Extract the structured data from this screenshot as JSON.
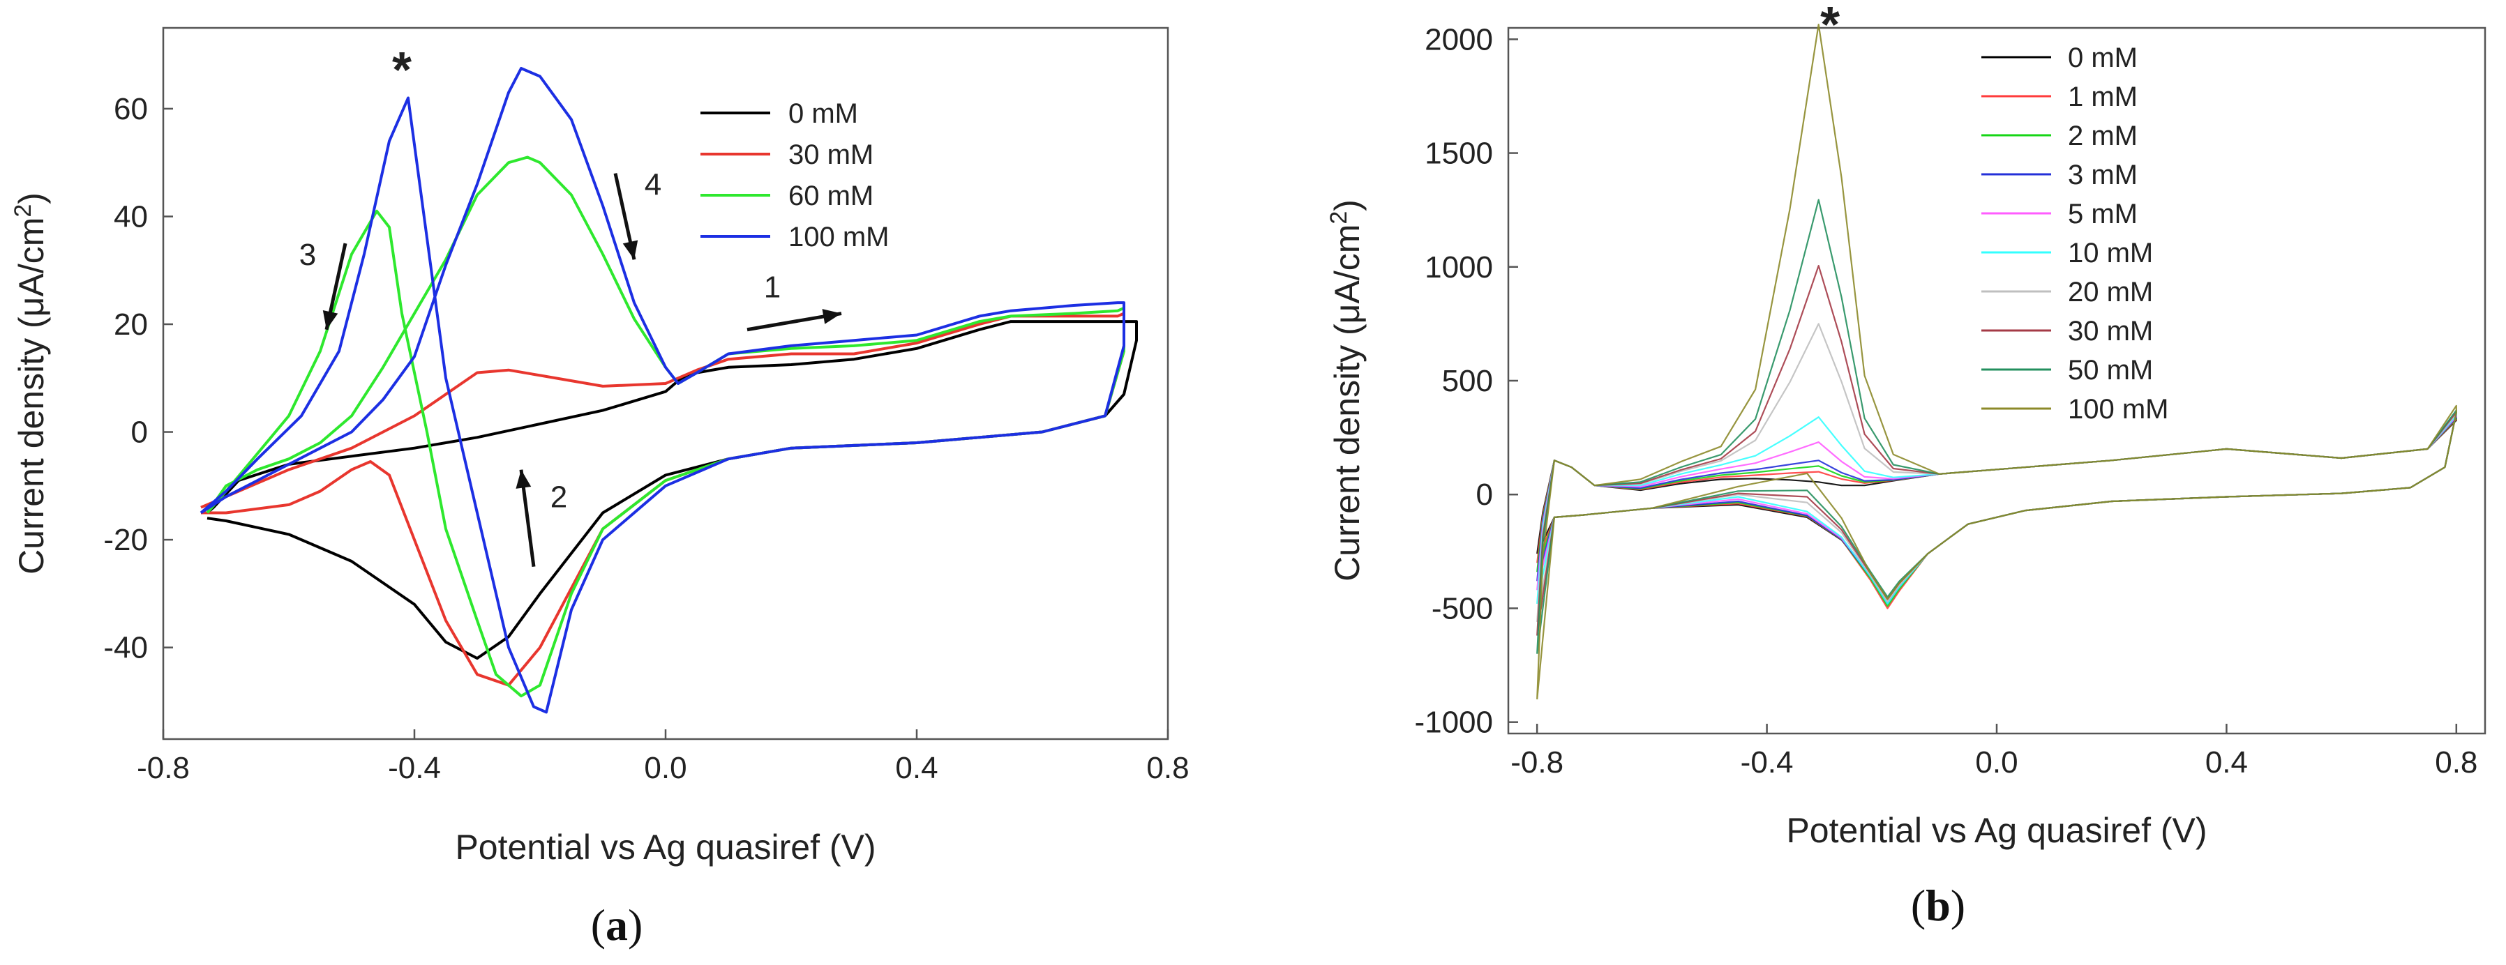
{
  "chart_data": [
    {
      "panel": "(a)",
      "type": "line",
      "xlabel": "Potential vs Ag quasiref (V)",
      "ylabel": "Current density (μA/cm²)",
      "xlim": [
        -0.8,
        0.8
      ],
      "ylim": [
        -57,
        75
      ],
      "xticks": [
        -0.8,
        -0.4,
        0.0,
        0.4,
        0.8
      ],
      "yticks": [
        -40,
        -20,
        0,
        20,
        40,
        60
      ],
      "xtick_labels": [
        "-0.8",
        "-0.4",
        "0.0",
        "0.4",
        "0.8"
      ],
      "ytick_labels": [
        "-40",
        "-20",
        "0",
        "20",
        "40",
        "60"
      ],
      "grid": false,
      "legend_position": "top-right",
      "series": [
        {
          "name": "0 mM",
          "color": "#000000",
          "points": [
            [
              -0.73,
              -15
            ],
            [
              -0.72,
              -14
            ],
            [
              -0.68,
              -9
            ],
            [
              -0.6,
              -6
            ],
            [
              -0.5,
              -4.5
            ],
            [
              -0.4,
              -3
            ],
            [
              -0.3,
              -1
            ],
            [
              -0.2,
              1.5
            ],
            [
              -0.1,
              4
            ],
            [
              0.0,
              7.5
            ],
            [
              0.02,
              9.5
            ],
            [
              0.05,
              11
            ],
            [
              0.1,
              12
            ],
            [
              0.2,
              12.5
            ],
            [
              0.3,
              13.5
            ],
            [
              0.4,
              15.5
            ],
            [
              0.5,
              19
            ],
            [
              0.55,
              20.5
            ],
            [
              0.65,
              20.5
            ],
            [
              0.72,
              20.5
            ],
            [
              0.75,
              20.5
            ],
            [
              0.75,
              17
            ],
            [
              0.73,
              7
            ],
            [
              0.7,
              3
            ],
            [
              0.6,
              0
            ],
            [
              0.4,
              -2
            ],
            [
              0.2,
              -3
            ],
            [
              0.1,
              -5
            ],
            [
              0.0,
              -8
            ],
            [
              -0.1,
              -15
            ],
            [
              -0.2,
              -30
            ],
            [
              -0.25,
              -38
            ],
            [
              -0.3,
              -42
            ],
            [
              -0.35,
              -39
            ],
            [
              -0.4,
              -32
            ],
            [
              -0.5,
              -24
            ],
            [
              -0.6,
              -19
            ],
            [
              -0.7,
              -16.5
            ],
            [
              -0.73,
              -16
            ]
          ]
        },
        {
          "name": "30 mM",
          "color": "#e8362e",
          "points": [
            [
              -0.74,
              -14
            ],
            [
              -0.7,
              -12
            ],
            [
              -0.6,
              -7
            ],
            [
              -0.5,
              -3
            ],
            [
              -0.4,
              3
            ],
            [
              -0.3,
              11
            ],
            [
              -0.25,
              11.5
            ],
            [
              -0.2,
              10.5
            ],
            [
              -0.1,
              8.5
            ],
            [
              0.0,
              9
            ],
            [
              0.02,
              10
            ],
            [
              0.05,
              11.5
            ],
            [
              0.1,
              13.5
            ],
            [
              0.2,
              14.5
            ],
            [
              0.3,
              14.5
            ],
            [
              0.4,
              16.5
            ],
            [
              0.5,
              20
            ],
            [
              0.55,
              21.5
            ],
            [
              0.65,
              21.5
            ],
            [
              0.72,
              21.5
            ],
            [
              0.73,
              22
            ],
            [
              0.73,
              15
            ],
            [
              0.7,
              3
            ],
            [
              0.6,
              0
            ],
            [
              0.4,
              -2
            ],
            [
              0.2,
              -3
            ],
            [
              0.1,
              -5
            ],
            [
              0.0,
              -9
            ],
            [
              -0.1,
              -18
            ],
            [
              -0.2,
              -40
            ],
            [
              -0.25,
              -47
            ],
            [
              -0.3,
              -45
            ],
            [
              -0.35,
              -35
            ],
            [
              -0.4,
              -20
            ],
            [
              -0.44,
              -8
            ],
            [
              -0.47,
              -5.5
            ],
            [
              -0.5,
              -7
            ],
            [
              -0.55,
              -11
            ],
            [
              -0.6,
              -13.5
            ],
            [
              -0.7,
              -15
            ],
            [
              -0.74,
              -15
            ]
          ]
        },
        {
          "name": "60 mM",
          "color": "#2ee82e",
          "points": [
            [
              -0.73,
              -15
            ],
            [
              -0.7,
              -10
            ],
            [
              -0.65,
              -7
            ],
            [
              -0.6,
              -5
            ],
            [
              -0.55,
              -2
            ],
            [
              -0.5,
              3
            ],
            [
              -0.45,
              12
            ],
            [
              -0.4,
              22
            ],
            [
              -0.35,
              32
            ],
            [
              -0.3,
              44
            ],
            [
              -0.25,
              50
            ],
            [
              -0.22,
              51
            ],
            [
              -0.2,
              50
            ],
            [
              -0.15,
              44
            ],
            [
              -0.1,
              33
            ],
            [
              -0.05,
              21
            ],
            [
              0.0,
              12
            ],
            [
              0.02,
              9
            ],
            [
              0.05,
              11
            ],
            [
              0.1,
              14.5
            ],
            [
              0.2,
              15.5
            ],
            [
              0.3,
              16
            ],
            [
              0.4,
              17
            ],
            [
              0.5,
              20.5
            ],
            [
              0.55,
              21.5
            ],
            [
              0.65,
              22
            ],
            [
              0.72,
              22.5
            ],
            [
              0.73,
              23
            ],
            [
              0.73,
              15
            ],
            [
              0.7,
              3
            ],
            [
              0.6,
              0
            ],
            [
              0.4,
              -2
            ],
            [
              0.2,
              -3
            ],
            [
              0.1,
              -5
            ],
            [
              0.0,
              -9
            ],
            [
              -0.1,
              -18
            ],
            [
              -0.15,
              -30
            ],
            [
              -0.2,
              -47
            ],
            [
              -0.23,
              -49
            ],
            [
              -0.27,
              -45
            ],
            [
              -0.3,
              -35
            ],
            [
              -0.35,
              -18
            ],
            [
              -0.38,
              0
            ],
            [
              -0.42,
              22
            ],
            [
              -0.44,
              38
            ],
            [
              -0.46,
              41
            ],
            [
              -0.5,
              33
            ],
            [
              -0.55,
              15
            ],
            [
              -0.6,
              3
            ],
            [
              -0.65,
              -4
            ],
            [
              -0.7,
              -11
            ],
            [
              -0.73,
              -15
            ]
          ]
        },
        {
          "name": "100 mM",
          "color": "#1c2fe3",
          "points": [
            [
              -0.74,
              -15
            ],
            [
              -0.7,
              -12
            ],
            [
              -0.65,
              -9
            ],
            [
              -0.6,
              -6
            ],
            [
              -0.55,
              -3
            ],
            [
              -0.5,
              0
            ],
            [
              -0.45,
              6
            ],
            [
              -0.4,
              14
            ],
            [
              -0.35,
              31
            ],
            [
              -0.3,
              46
            ],
            [
              -0.25,
              63
            ],
            [
              -0.23,
              67.5
            ],
            [
              -0.2,
              66
            ],
            [
              -0.15,
              58
            ],
            [
              -0.1,
              42
            ],
            [
              -0.05,
              24
            ],
            [
              0.0,
              12
            ],
            [
              0.02,
              9
            ],
            [
              0.05,
              11
            ],
            [
              0.1,
              14.5
            ],
            [
              0.2,
              16
            ],
            [
              0.3,
              17
            ],
            [
              0.4,
              18
            ],
            [
              0.5,
              21.5
            ],
            [
              0.55,
              22.5
            ],
            [
              0.65,
              23.5
            ],
            [
              0.72,
              24
            ],
            [
              0.73,
              24
            ],
            [
              0.73,
              16
            ],
            [
              0.7,
              3
            ],
            [
              0.6,
              0
            ],
            [
              0.4,
              -2
            ],
            [
              0.2,
              -3
            ],
            [
              0.1,
              -5
            ],
            [
              0.0,
              -10
            ],
            [
              -0.1,
              -20
            ],
            [
              -0.15,
              -33
            ],
            [
              -0.19,
              -52
            ],
            [
              -0.21,
              -51
            ],
            [
              -0.25,
              -40
            ],
            [
              -0.3,
              -15
            ],
            [
              -0.35,
              10
            ],
            [
              -0.38,
              36
            ],
            [
              -0.41,
              62
            ],
            [
              -0.44,
              54
            ],
            [
              -0.48,
              33
            ],
            [
              -0.52,
              15
            ],
            [
              -0.58,
              3
            ],
            [
              -0.65,
              -5
            ],
            [
              -0.7,
              -11
            ],
            [
              -0.74,
              -15
            ]
          ]
        }
      ],
      "annotations": [
        {
          "text": "*",
          "x": -0.42,
          "y": 64
        },
        {
          "text": "1",
          "x": 0.17,
          "y": 25,
          "arrow": [
            [
              0.13,
              19
            ],
            [
              0.28,
              22
            ]
          ]
        },
        {
          "text": "2",
          "x": -0.17,
          "y": -14,
          "arrow": [
            [
              -0.21,
              -25
            ],
            [
              -0.23,
              -7
            ]
          ]
        },
        {
          "text": "3",
          "x": -0.57,
          "y": 31,
          "arrow": [
            [
              -0.51,
              35
            ],
            [
              -0.54,
              19
            ]
          ]
        },
        {
          "text": "4",
          "x": -0.02,
          "y": 44,
          "arrow": [
            [
              -0.08,
              48
            ],
            [
              -0.05,
              32
            ]
          ]
        }
      ]
    },
    {
      "panel": "(b)",
      "type": "line",
      "xlabel": "Potential vs Ag quasiref (V)",
      "ylabel": "Current density (μA/cm²)",
      "xlim": [
        -0.85,
        0.85
      ],
      "ylim": [
        -1050,
        2050
      ],
      "xticks": [
        -0.8,
        -0.4,
        0.0,
        0.4,
        0.8
      ],
      "yticks": [
        -1000,
        -500,
        0,
        500,
        1000,
        1500,
        2000
      ],
      "xtick_labels": [
        "-0.8",
        "-0.4",
        "0.0",
        "0.4",
        "0.8"
      ],
      "ytick_labels": [
        "-1000",
        "-500",
        "0",
        "500",
        "1000",
        "1500",
        "2000"
      ],
      "grid": false,
      "legend_position": "top-center",
      "series": [
        {
          "name": "0 mM",
          "color": "#000000",
          "peak": 0,
          "cath": 480,
          "bump": 30,
          "low": 260
        },
        {
          "name": "1 mM",
          "color": "#ff3c3c",
          "peak": 40,
          "cath": 500,
          "bump": 40,
          "low": 300
        },
        {
          "name": "2 mM",
          "color": "#16d516",
          "peak": 60,
          "cath": 490,
          "bump": 50,
          "low": 340
        },
        {
          "name": "3 mM",
          "color": "#2430d8",
          "peak": 80,
          "cath": 480,
          "bump": 60,
          "low": 380
        },
        {
          "name": "5 mM",
          "color": "#ff5cff",
          "peak": 150,
          "cath": 470,
          "bump": 80,
          "low": 420
        },
        {
          "name": "10 mM",
          "color": "#33ffff",
          "peak": 250,
          "cath": 480,
          "bump": 100,
          "low": 480
        },
        {
          "name": "20 mM",
          "color": "#bfbfbf",
          "peak": 650,
          "cath": 470,
          "bump": 120,
          "low": 560
        },
        {
          "name": "30 mM",
          "color": "#a43a46",
          "peak": 900,
          "cath": 460,
          "bump": 130,
          "low": 620
        },
        {
          "name": "50 mM",
          "color": "#238f5e",
          "peak": 1180,
          "cath": 450,
          "bump": 150,
          "low": 700
        },
        {
          "name": "100 mM",
          "color": "#8c8a2a",
          "peak": 1930,
          "cath": 460,
          "bump": 190,
          "low": 900
        }
      ],
      "annotations": [
        {
          "text": "*",
          "x": -0.29,
          "y": 2050
        }
      ]
    }
  ],
  "labels": {
    "panel_a": "(a)",
    "panel_b": "(b)"
  }
}
